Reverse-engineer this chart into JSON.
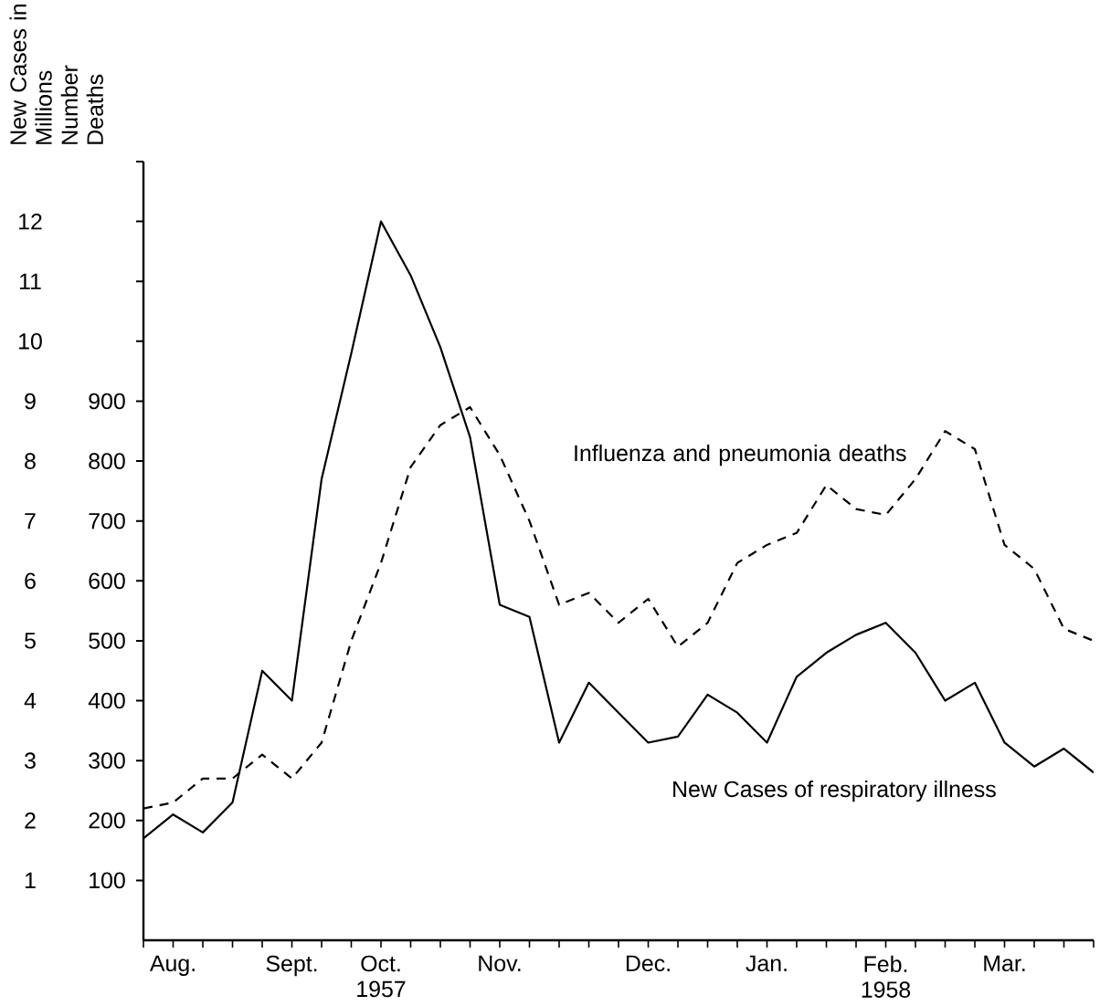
{
  "chart_data": {
    "type": "line",
    "ylabel": "New Cases in Millions",
    "y2label": "Number Deaths",
    "categories": [
      null,
      "Aug.",
      null,
      null,
      null,
      "Sept.",
      null,
      null,
      "Oct. 1957",
      null,
      null,
      null,
      "Nov.",
      null,
      null,
      null,
      null,
      "Dec.",
      null,
      null,
      null,
      "Jan.",
      null,
      null,
      null,
      "Feb. 1958",
      null,
      null,
      null,
      "Mar.",
      null,
      null,
      null
    ],
    "ylim": [
      0,
      13
    ],
    "yticks": [
      1,
      2,
      3,
      4,
      5,
      6,
      7,
      8,
      9,
      10,
      11,
      12,
      {
        "value": 13,
        "label": null
      }
    ],
    "y2lim": [
      0,
      1300
    ],
    "y2ticks": [
      100,
      200,
      300,
      400,
      500,
      600,
      700,
      800,
      900
    ],
    "series": [
      {
        "name": "New Cases of respiratory illness",
        "color": "#000000",
        "line_style": "solid",
        "values": [
          1.7,
          2.1,
          1.8,
          2.3,
          4.5,
          4.0,
          7.7,
          9.8,
          12.0,
          11.1,
          9.9,
          8.4,
          5.6,
          5.4,
          3.3,
          4.3,
          3.8,
          3.3,
          3.4,
          4.1,
          3.8,
          3.3,
          4.4,
          4.8,
          5.1,
          5.3,
          4.8,
          4.0,
          4.3,
          3.3,
          2.9,
          3.2,
          2.8
        ]
      },
      {
        "name": "Influenza and pneumonia deaths",
        "color": "#000000",
        "line_style": "dashed",
        "axis": "y2",
        "values": [
          220,
          230,
          270,
          270,
          310,
          270,
          330,
          500,
          630,
          790,
          860,
          890,
          810,
          700,
          560,
          580,
          530,
          570,
          490,
          530,
          630,
          660,
          680,
          760,
          720,
          710,
          770,
          850,
          820,
          660,
          620,
          520,
          500
        ]
      }
    ]
  }
}
